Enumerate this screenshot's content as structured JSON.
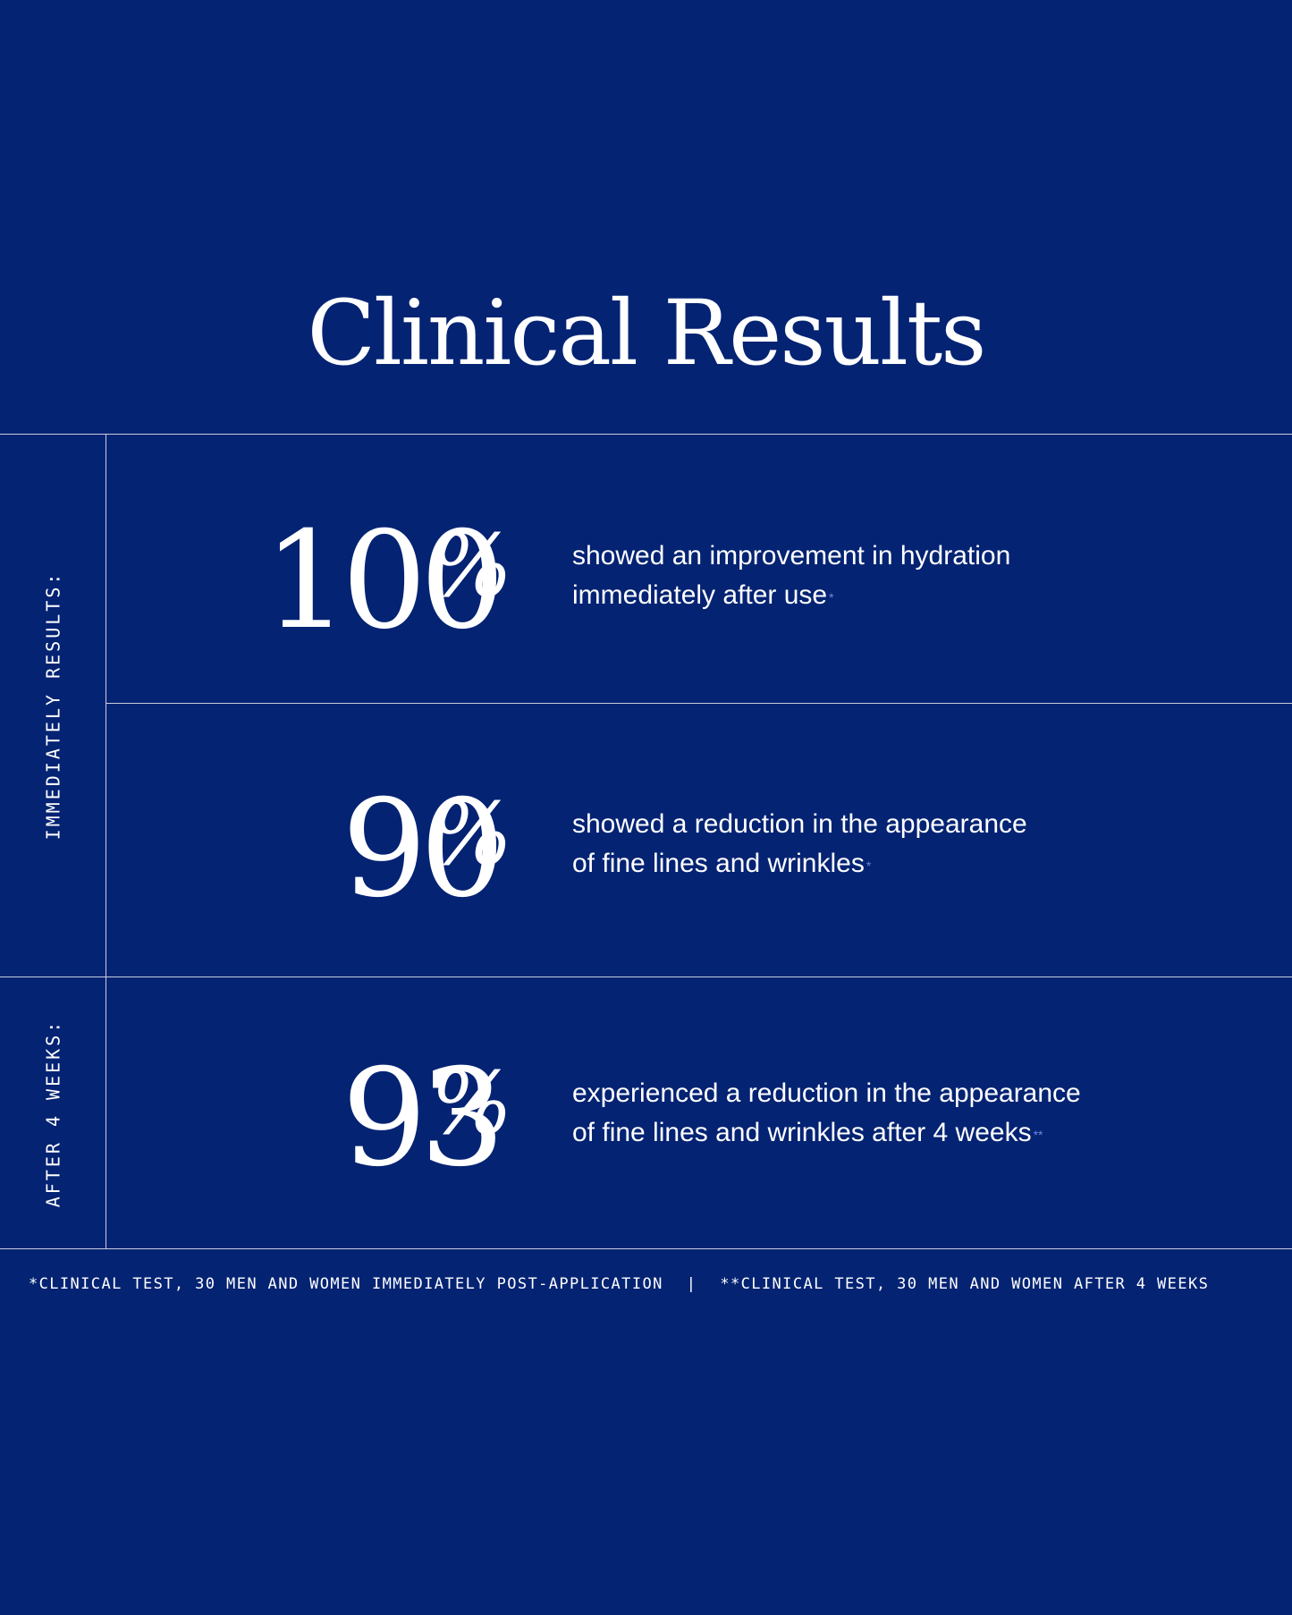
{
  "title": "Clinical Results",
  "colors": {
    "background": "#042373",
    "text": "#ffffff",
    "divider": "#c9cfe2",
    "footnote_mark": "#6d86e6"
  },
  "side_labels": {
    "immediate": "IMMEDIATELY RESULTS:",
    "weeks": "AFTER 4 WEEKS:"
  },
  "stats": [
    {
      "number": "100",
      "percent": "%",
      "line1": "showed an improvement in hydration",
      "line2": "immediately after use",
      "mark": "*"
    },
    {
      "number": "90",
      "percent": "%",
      "line1": "showed a reduction in the appearance",
      "line2": "of fine lines and wrinkles",
      "mark": "*"
    },
    {
      "number": "93",
      "percent": "%",
      "line1": "experienced a reduction in the appearance",
      "line2": "of fine lines and wrinkles after 4 weeks",
      "mark": "**"
    }
  ],
  "footnotes": {
    "first": "*CLINICAL TEST, 30 MEN AND WOMEN IMMEDIATELY POST-APPLICATION",
    "separator": "|",
    "second": "**CLINICAL TEST, 30 MEN AND WOMEN AFTER 4 WEEKS"
  }
}
